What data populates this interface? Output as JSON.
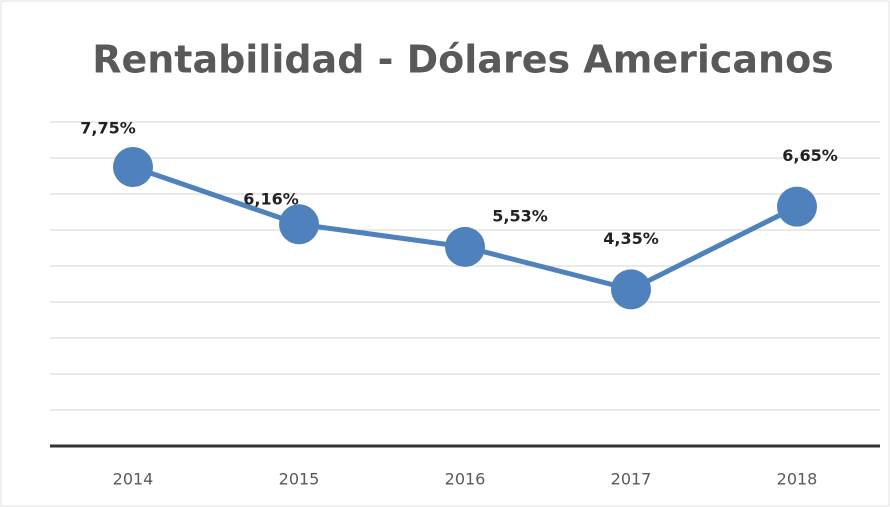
{
  "chart_data": {
    "type": "line",
    "title": "Rentabilidad - Dólares Americanos",
    "categories": [
      "2014",
      "2015",
      "2016",
      "2017",
      "2018"
    ],
    "series": [
      {
        "color": "#4f81bd",
        "values": [
          7.75,
          6.16,
          5.53,
          4.35,
          6.65
        ],
        "value_labels": [
          "7,75%",
          "6,16%",
          "5,53%",
          "4,35%",
          "6,65%"
        ]
      }
    ],
    "ylim": [
      0,
      9
    ],
    "yticks": [
      0,
      1,
      2,
      3,
      4,
      5,
      6,
      7,
      8,
      9
    ],
    "grid": true
  }
}
